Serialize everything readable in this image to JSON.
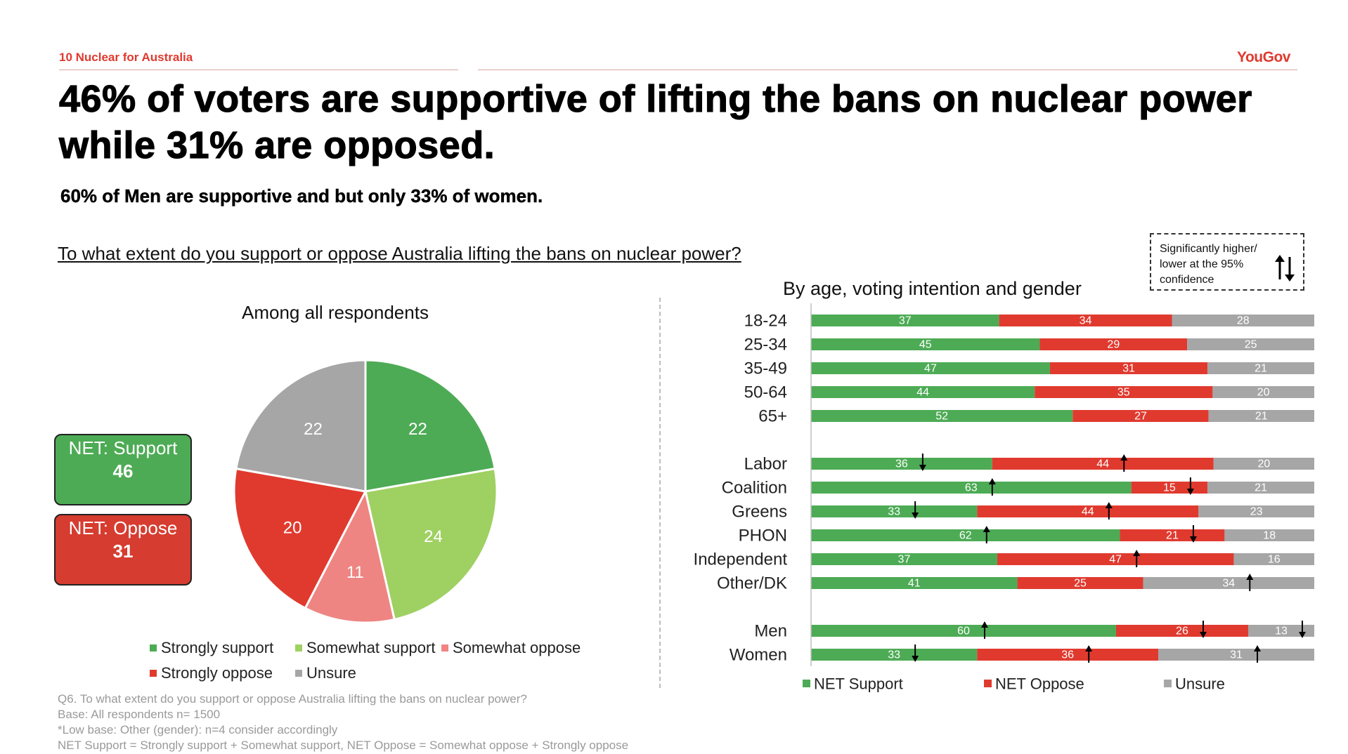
{
  "header": {
    "section": "10  Nuclear for Australia",
    "brand": "YouGov"
  },
  "headline": "46% of voters are supportive of lifting the bans on nuclear power while 31% are opposed.",
  "subheadline": "60% of Men are supportive and but only 33% of women.",
  "question": "To what extent do you support or oppose Australia lifting the bans on nuclear power?",
  "significance_note": {
    "text": "Significantly higher/ lower at the 95% confidence",
    "icon": "up-down-arrows-icon"
  },
  "net_boxes": [
    {
      "label": "NET: Support",
      "value": "46",
      "color": "#4dab55"
    },
    {
      "label": "NET: Oppose",
      "value": "31",
      "color": "#d63c30"
    }
  ],
  "footnotes": [
    "Q6. To what extent do you support or oppose Australia lifting the bans on nuclear power?",
    "Base: All respondents n= 1500",
    "*Low base: Other (gender): n=4 consider accordingly",
    "NET Support = Strongly support + Somewhat support, NET Oppose = Somewhat oppose + Strongly oppose"
  ],
  "chart_data": [
    {
      "type": "pie",
      "title": "Among all respondents",
      "categories": [
        "Strongly support",
        "Somewhat support",
        "Somewhat oppose",
        "Strongly oppose",
        "Unsure"
      ],
      "values": [
        22,
        24,
        11,
        20,
        22
      ],
      "colors": [
        "#4dab55",
        "#9fd062",
        "#ee8583",
        "#e03a2f",
        "#a6a6a6"
      ],
      "legend": "bottom"
    },
    {
      "type": "bar",
      "orientation": "horizontal-stacked",
      "title": "By age, voting intention and gender",
      "groups": [
        {
          "rows": [
            {
              "label": "18-24",
              "values": [
                37,
                34,
                28
              ],
              "sig": [
                null,
                null,
                null
              ]
            },
            {
              "label": "25-34",
              "values": [
                45,
                29,
                25
              ],
              "sig": [
                null,
                null,
                null
              ]
            },
            {
              "label": "35-49",
              "values": [
                47,
                31,
                21
              ],
              "sig": [
                null,
                null,
                null
              ]
            },
            {
              "label": "50-64",
              "values": [
                44,
                35,
                20
              ],
              "sig": [
                null,
                null,
                null
              ]
            },
            {
              "label": "65+",
              "values": [
                52,
                27,
                21
              ],
              "sig": [
                null,
                null,
                null
              ]
            }
          ]
        },
        {
          "rows": [
            {
              "label": "Labor",
              "values": [
                36,
                44,
                20
              ],
              "sig": [
                "down",
                "up",
                null
              ]
            },
            {
              "label": "Coalition",
              "values": [
                63,
                15,
                21
              ],
              "sig": [
                "up",
                "down",
                null
              ]
            },
            {
              "label": "Greens",
              "values": [
                33,
                44,
                23
              ],
              "sig": [
                "down",
                "up",
                null
              ]
            },
            {
              "label": "PHON",
              "values": [
                62,
                21,
                18
              ],
              "sig": [
                "up",
                "down",
                null
              ]
            },
            {
              "label": "Independent",
              "values": [
                37,
                47,
                16
              ],
              "sig": [
                null,
                "up",
                null
              ]
            },
            {
              "label": "Other/DK",
              "values": [
                41,
                25,
                34
              ],
              "sig": [
                null,
                null,
                "up"
              ]
            }
          ]
        },
        {
          "rows": [
            {
              "label": "Men",
              "values": [
                60,
                26,
                13
              ],
              "sig": [
                "up",
                "down",
                "down"
              ]
            },
            {
              "label": "Women",
              "values": [
                33,
                36,
                31
              ],
              "sig": [
                "down",
                "up",
                "up"
              ]
            }
          ]
        }
      ],
      "series": [
        {
          "name": "NET Support",
          "color": "#4dab55"
        },
        {
          "name": "NET Oppose",
          "color": "#e03a2f"
        },
        {
          "name": "Unsure",
          "color": "#a6a6a6"
        }
      ],
      "legend": "bottom"
    }
  ]
}
